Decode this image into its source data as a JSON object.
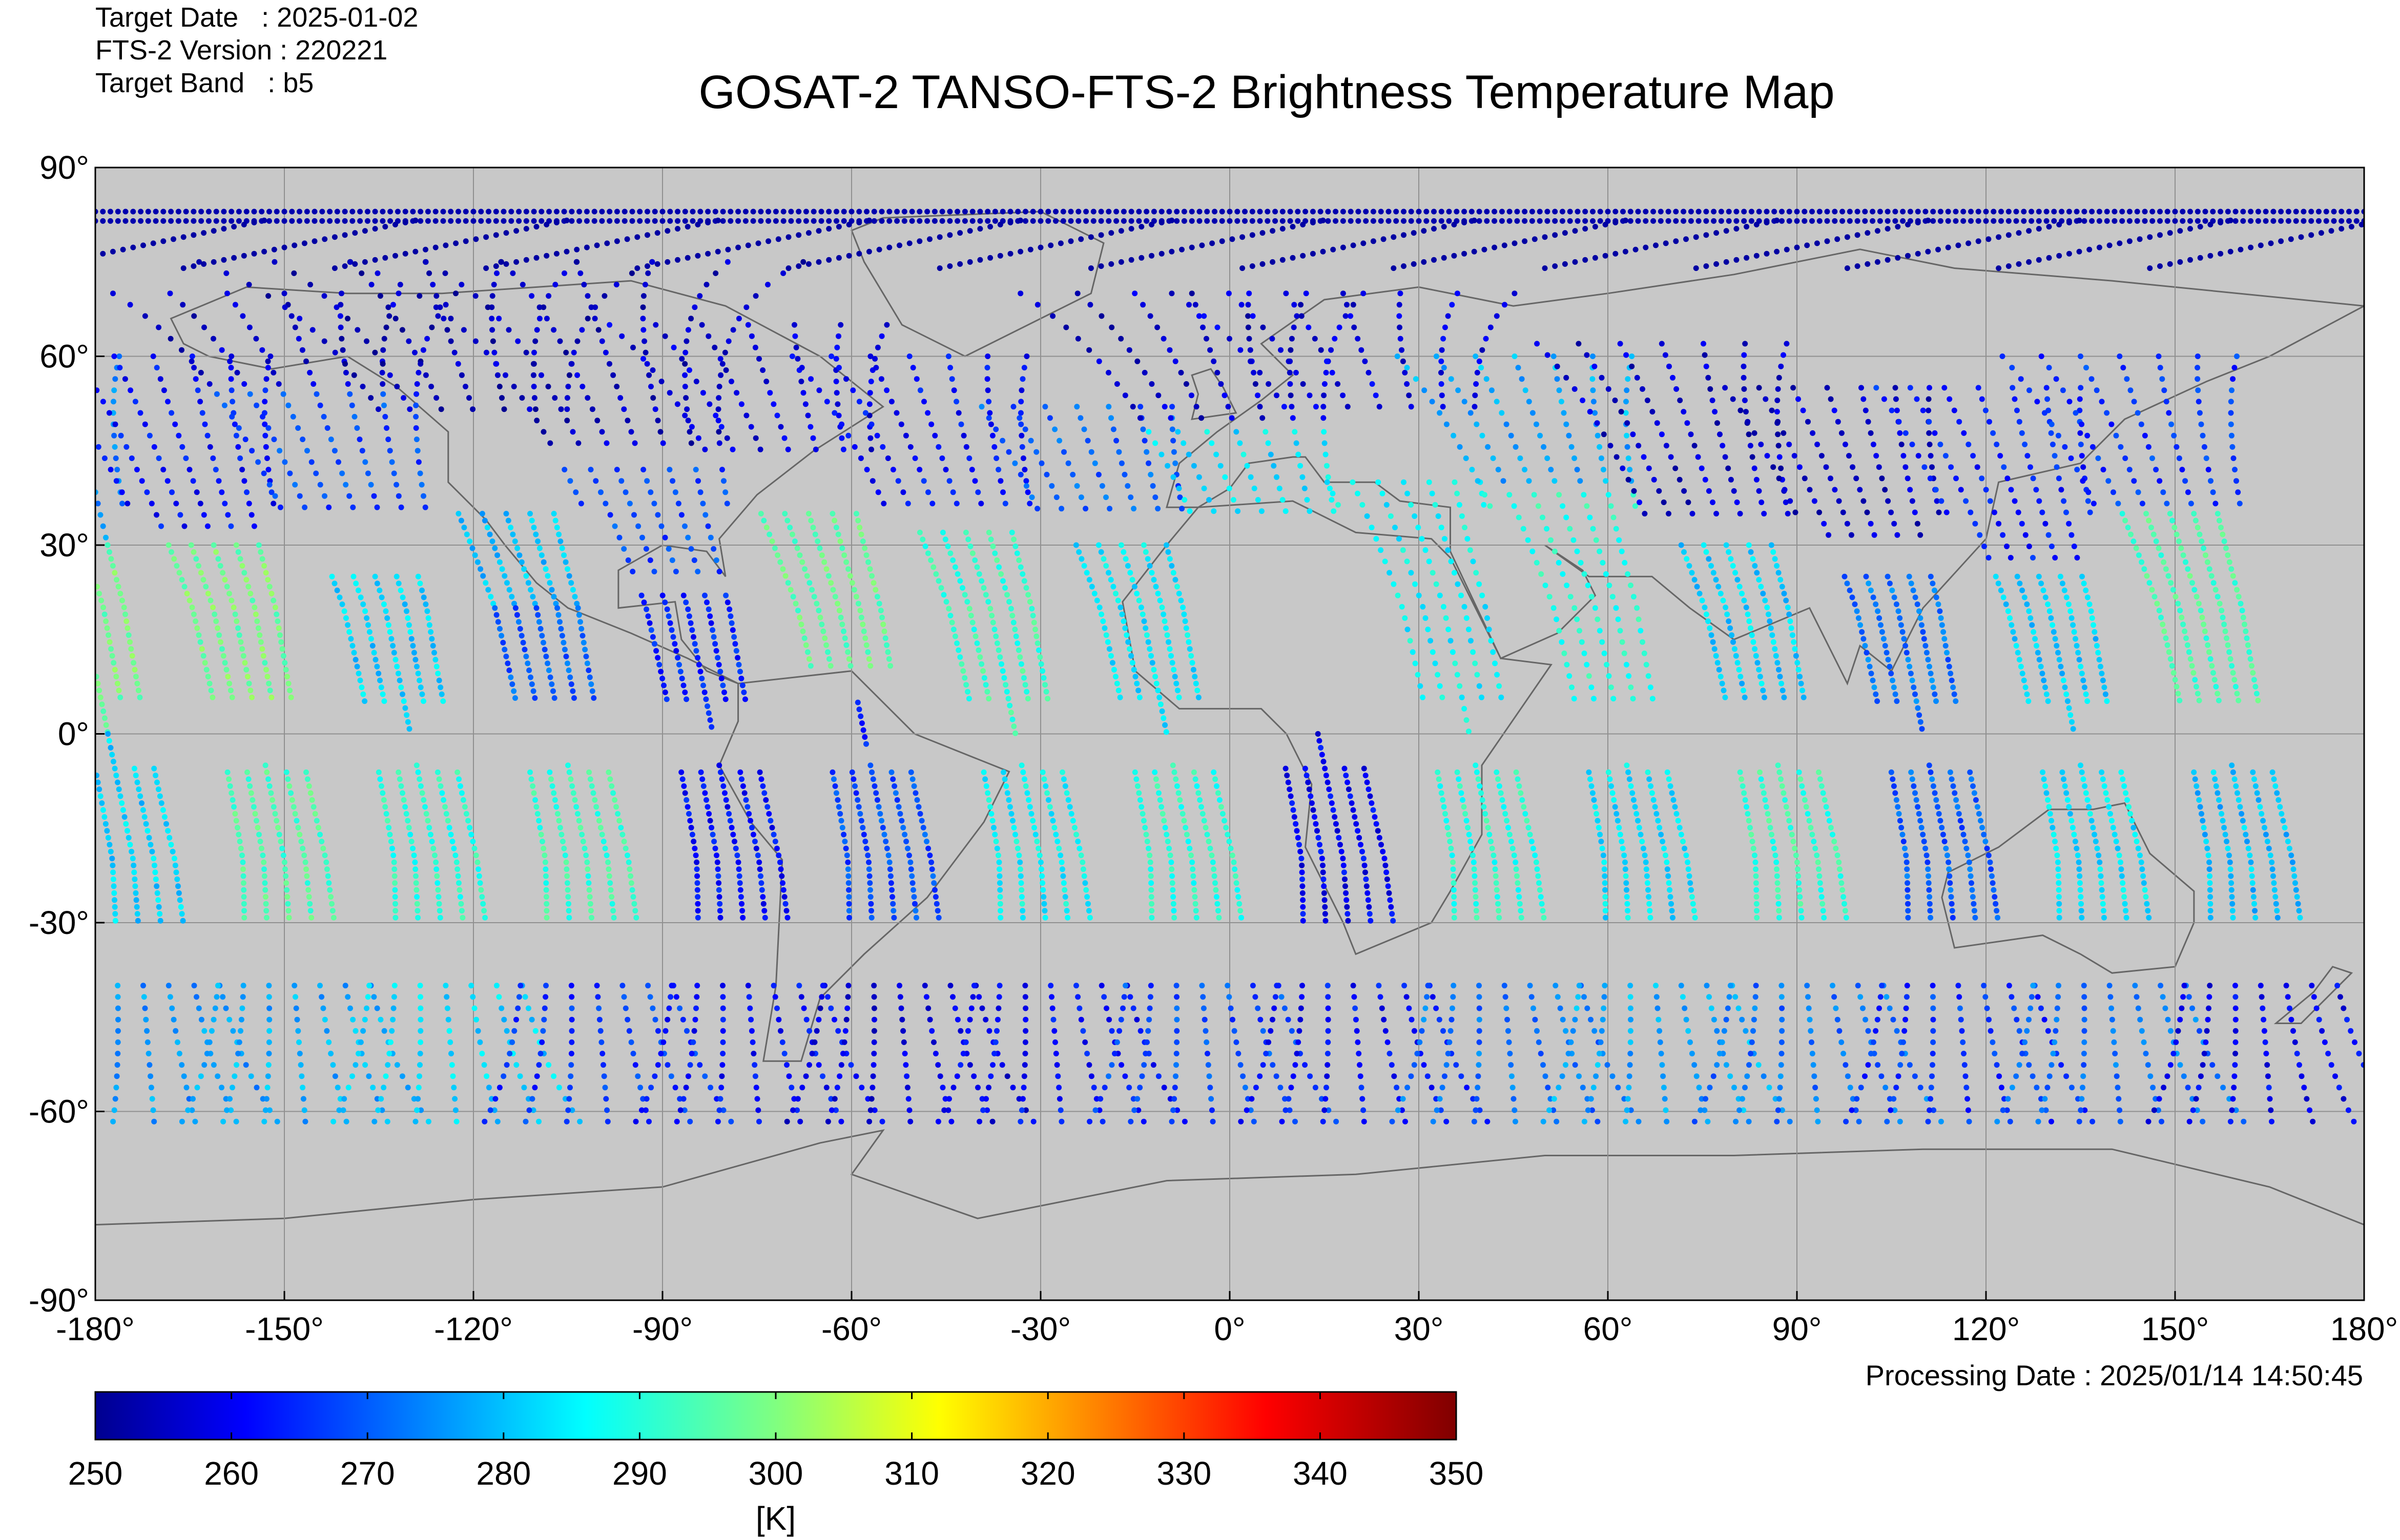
{
  "meta": {
    "target_date": "Target Date   : 2025-01-02",
    "version": "FTS-2 Version : 220221",
    "band": "Target Band   : b5",
    "processing_date": "Processing Date : 2025/01/14 14:50:45"
  },
  "chart_data": {
    "type": "scatter",
    "title": "GOSAT-2 TANSO-FTS-2 Brightness Temperature Map",
    "xlim": [
      -180,
      180
    ],
    "ylim": [
      -90,
      90
    ],
    "x_ticks": [
      "-180°",
      "-150°",
      "-120°",
      "-90°",
      "-60°",
      "-30°",
      "0°",
      "30°",
      "60°",
      "90°",
      "120°",
      "150°",
      "180°"
    ],
    "y_ticks": [
      "90°",
      "60°",
      "30°",
      "0°",
      "-30°",
      "-60°",
      "-90°"
    ],
    "grid": true,
    "background_color": "#c8c8c8",
    "colorbar": {
      "min": 250,
      "max": 350,
      "ticks": [
        "250",
        "260",
        "270",
        "280",
        "290",
        "300",
        "310",
        "320",
        "330",
        "340",
        "350"
      ],
      "label": "[K]",
      "colormap": "jet"
    },
    "swaths": [
      {
        "lon_at_equator": -178,
        "zones": [
          {
            "lat": [
              60,
              30
            ],
            "temp": 274
          },
          {
            "lat": [
              30,
              0
            ],
            "temp": 298
          },
          {
            "lat": [
              0,
              -30
            ],
            "temp": 282
          },
          {
            "lat": [
              -40,
              -63
            ],
            "temp": 276
          }
        ]
      },
      {
        "lon_at_equator": -154,
        "zones": [
          {
            "lat": [
              60,
              32
            ],
            "temp": 262
          },
          {
            "lat": [
              30,
              5
            ],
            "temp": 298
          },
          {
            "lat": [
              -5,
              -30
            ],
            "temp": 294
          },
          {
            "lat": [
              -40,
              -63
            ],
            "temp": 278
          }
        ]
      },
      {
        "lon_at_equator": -130,
        "zones": [
          {
            "lat": [
              70,
              55
            ],
            "temp": 255
          },
          {
            "lat": [
              54,
              35
            ],
            "temp": 268
          },
          {
            "lat": [
              25,
              0
            ],
            "temp": 282
          },
          {
            "lat": [
              -5,
              -30
            ],
            "temp": 290
          },
          {
            "lat": [
              -40,
              -63
            ],
            "temp": 282
          }
        ]
      },
      {
        "lon_at_equator": -106,
        "zones": [
          {
            "lat": [
              75,
              50
            ],
            "temp": 254
          },
          {
            "lat": [
              35,
              20
            ],
            "temp": 280
          },
          {
            "lat": [
              20,
              5
            ],
            "temp": 270
          },
          {
            "lat": [
              -5,
              -30
            ],
            "temp": 292
          },
          {
            "lat": [
              -40,
              -63
            ],
            "temp": 266
          }
        ]
      },
      {
        "lon_at_equator": -82,
        "zones": [
          {
            "lat": [
              75,
              45
            ],
            "temp": 255
          },
          {
            "lat": [
              42,
              25
            ],
            "temp": 268
          },
          {
            "lat": [
              22,
              0
            ],
            "temp": 264
          },
          {
            "lat": [
              -5,
              -30
            ],
            "temp": 262
          },
          {
            "lat": [
              -40,
              -63
            ],
            "temp": 262
          }
        ]
      },
      {
        "lon_at_equator": -58,
        "zones": [
          {
            "lat": [
              65,
              45
            ],
            "temp": 258
          },
          {
            "lat": [
              35,
              10
            ],
            "temp": 296
          },
          {
            "lat": [
              5,
              -2
            ],
            "temp": 264
          },
          {
            "lat": [
              -5,
              -30
            ],
            "temp": 268
          },
          {
            "lat": [
              -40,
              -63
            ],
            "temp": 258
          }
        ]
      },
      {
        "lon_at_equator": -34,
        "zones": [
          {
            "lat": [
              60,
              35
            ],
            "temp": 262
          },
          {
            "lat": [
              32,
              0
            ],
            "temp": 292
          },
          {
            "lat": [
              -5,
              -30
            ],
            "temp": 286
          },
          {
            "lat": [
              -40,
              -63
            ],
            "temp": 262
          }
        ]
      },
      {
        "lon_at_equator": -10,
        "zones": [
          {
            "lat": [
              52,
              35
            ],
            "temp": 270
          },
          {
            "lat": [
              30,
              0
            ],
            "temp": 284
          },
          {
            "lat": [
              -5,
              -30
            ],
            "temp": 290
          },
          {
            "lat": [
              -40,
              -63
            ],
            "temp": 268
          }
        ]
      },
      {
        "lon_at_equator": 14,
        "zones": [
          {
            "lat": [
              70,
              50
            ],
            "temp": 256
          },
          {
            "lat": [
              48,
              35
            ],
            "temp": 284
          },
          {
            "lat": [
              0,
              -30
            ],
            "temp": 260
          },
          {
            "lat": [
              -40,
              -63
            ],
            "temp": 262
          }
        ]
      },
      {
        "lon_at_equator": 38,
        "zones": [
          {
            "lat": [
              70,
              52
            ],
            "temp": 258
          },
          {
            "lat": [
              40,
              0
            ],
            "temp": 286
          },
          {
            "lat": [
              -5,
              -30
            ],
            "temp": 290
          },
          {
            "lat": [
              -40,
              -63
            ],
            "temp": 272
          }
        ]
      },
      {
        "lon_at_equator": 62,
        "zones": [
          {
            "lat": [
              60,
              40
            ],
            "temp": 278
          },
          {
            "lat": [
              38,
              5
            ],
            "temp": 290
          },
          {
            "lat": [
              -5,
              -30
            ],
            "temp": 284
          },
          {
            "lat": [
              -40,
              -63
            ],
            "temp": 278
          }
        ]
      },
      {
        "lon_at_equator": 86,
        "zones": [
          {
            "lat": [
              62,
              35
            ],
            "temp": 256
          },
          {
            "lat": [
              30,
              5
            ],
            "temp": 282
          },
          {
            "lat": [
              -5,
              -30
            ],
            "temp": 292
          },
          {
            "lat": [
              -40,
              -63
            ],
            "temp": 272
          }
        ]
      },
      {
        "lon_at_equator": 110,
        "zones": [
          {
            "lat": [
              55,
              30
            ],
            "temp": 256
          },
          {
            "lat": [
              25,
              0
            ],
            "temp": 272
          },
          {
            "lat": [
              -5,
              -30
            ],
            "temp": 270
          },
          {
            "lat": [
              -40,
              -63
            ],
            "temp": 266
          }
        ]
      },
      {
        "lon_at_equator": 134,
        "zones": [
          {
            "lat": [
              55,
              28
            ],
            "temp": 264
          },
          {
            "lat": [
              25,
              0
            ],
            "temp": 282
          },
          {
            "lat": [
              -5,
              -30
            ],
            "temp": 284
          },
          {
            "lat": [
              -40,
              -63
            ],
            "temp": 272
          }
        ]
      },
      {
        "lon_at_equator": 158,
        "zones": [
          {
            "lat": [
              60,
              35
            ],
            "temp": 266
          },
          {
            "lat": [
              35,
              5
            ],
            "temp": 294
          },
          {
            "lat": [
              -5,
              -30
            ],
            "temp": 280
          },
          {
            "lat": [
              -40,
              -63
            ],
            "temp": 260
          }
        ]
      }
    ]
  }
}
